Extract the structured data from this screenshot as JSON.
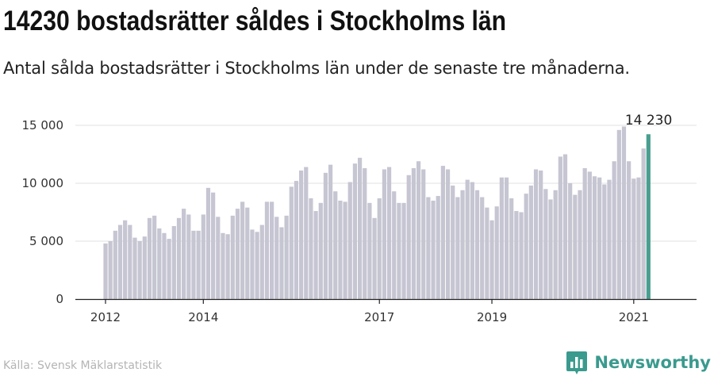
{
  "title": "14230 bostadsrätter såldes i Stockholms län",
  "subtitle": "Antal sålda bostadsrätter i Stockholms län under de senaste tre månaderna.",
  "source": "Källa: Svensk Mäklarstatistik",
  "brand": {
    "name": "Newsworthy",
    "icon": "newsworthy-logo-icon",
    "color": "#3a9a8e"
  },
  "colors": {
    "bar": "#c6c5d2",
    "highlight": "#4a9e90",
    "axis": "#222222",
    "grid": "#e2e2e2"
  },
  "chart_data": {
    "type": "bar",
    "x_start": "2012-01",
    "x_step": "month",
    "values": [
      4800,
      5000,
      5900,
      6400,
      6800,
      6400,
      5300,
      5000,
      5400,
      7000,
      7200,
      6100,
      5700,
      5200,
      6300,
      7000,
      7800,
      7300,
      5900,
      5900,
      7300,
      9600,
      9200,
      7100,
      5700,
      5600,
      7200,
      7800,
      8400,
      7900,
      6000,
      5800,
      6400,
      8400,
      8400,
      7100,
      6200,
      7200,
      9700,
      10200,
      11100,
      11400,
      8700,
      7600,
      8300,
      10900,
      11600,
      9300,
      8500,
      8400,
      10100,
      11700,
      12200,
      11300,
      8300,
      7000,
      8700,
      11200,
      11400,
      9300,
      8300,
      8300,
      10700,
      11300,
      11900,
      11200,
      8800,
      8500,
      8900,
      11500,
      11200,
      9800,
      8800,
      9400,
      10300,
      10100,
      9400,
      8800,
      7900,
      6800,
      8000,
      10500,
      10500,
      8700,
      7600,
      7500,
      9100,
      9800,
      11200,
      11100,
      9500,
      8600,
      9400,
      12300,
      12500,
      10000,
      9000,
      9400,
      11300,
      11000,
      10600,
      10500,
      9900,
      10300,
      11900,
      14600,
      14900,
      11900,
      10400,
      10500,
      13000,
      14230
    ],
    "highlight_index": 111,
    "highlight_label": "14 230",
    "y_ticks": [
      0,
      5000,
      10000,
      15000
    ],
    "y_tick_labels": [
      "0",
      "5 000",
      "10 000",
      "15 000"
    ],
    "ylim": [
      0,
      15000
    ],
    "x_tick_labels": [
      {
        "label": "2012",
        "index": 0
      },
      {
        "label": "2014",
        "index": 20
      },
      {
        "label": "2017",
        "index": 56
      },
      {
        "label": "2019",
        "index": 79
      },
      {
        "label": "2021",
        "index": 108
      }
    ],
    "grid": true,
    "xlabel": "",
    "ylabel": ""
  }
}
